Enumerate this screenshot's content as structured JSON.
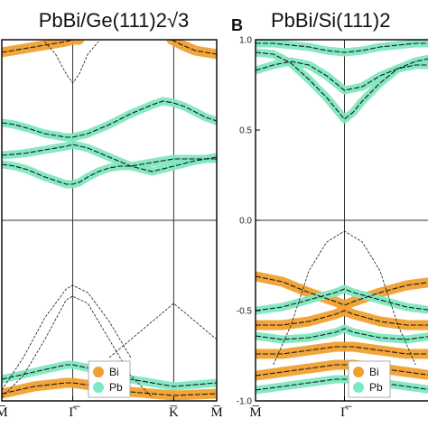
{
  "chart_data": [
    {
      "type": "line",
      "panel_label": "",
      "title": "PbBi/Ge(111)2√3",
      "ylim": [
        -1.0,
        1.0
      ],
      "y_ticks": [],
      "k_points": [
        "M̅",
        "Γ̅",
        "K̅",
        "M̅"
      ],
      "k_positions": [
        0,
        0.33,
        0.8,
        1.0
      ],
      "legend": [
        {
          "name": "Bi",
          "color": "#f0a030"
        },
        {
          "name": "Pb",
          "color": "#7fe8c0"
        }
      ],
      "series": [
        {
          "x": [
            0,
            0.06,
            0.12,
            0.16,
            0.2,
            0.25,
            0.3,
            0.33,
            0.36,
            0.4,
            0.45,
            0.5,
            0.55,
            0.6,
            0.65,
            0.7,
            0.75,
            0.8,
            0.85,
            0.9,
            0.95,
            1.0
          ],
          "y": [
            0.31,
            0.3,
            0.28,
            0.26,
            0.24,
            0.22,
            0.2,
            0.2,
            0.21,
            0.24,
            0.27,
            0.29,
            0.3,
            0.3,
            0.31,
            0.32,
            0.33,
            0.34,
            0.34,
            0.34,
            0.34,
            0.34
          ],
          "proj": "Pb"
        },
        {
          "x": [
            0,
            0.1,
            0.2,
            0.3,
            0.33,
            0.4,
            0.5,
            0.6,
            0.7,
            0.8,
            0.9,
            1.0
          ],
          "y": [
            0.36,
            0.37,
            0.39,
            0.41,
            0.42,
            0.4,
            0.35,
            0.3,
            0.27,
            0.3,
            0.33,
            0.35
          ],
          "proj": "Pb"
        },
        {
          "x": [
            0,
            0.06,
            0.12,
            0.2,
            0.3,
            0.33,
            0.4,
            0.5,
            0.6,
            0.7,
            0.75,
            0.8,
            0.85,
            0.9,
            0.95,
            1.0
          ],
          "y": [
            0.54,
            0.53,
            0.51,
            0.48,
            0.46,
            0.46,
            0.48,
            0.53,
            0.59,
            0.64,
            0.66,
            0.65,
            0.63,
            0.6,
            0.57,
            0.55
          ],
          "proj": "Pb"
        },
        {
          "x": [
            0,
            0.05,
            0.1,
            0.15,
            0.2,
            0.25,
            0.3,
            0.33,
            0.36
          ],
          "y": [
            0.93,
            0.94,
            0.95,
            0.96,
            0.97,
            0.98,
            0.99,
            1.0,
            1.0
          ],
          "proj": "Bi"
        },
        {
          "x": [
            0.79,
            0.84,
            0.9,
            0.95,
            1.0
          ],
          "y": [
            1.0,
            0.97,
            0.94,
            0.93,
            0.92
          ],
          "proj": "Bi"
        },
        {
          "x": [
            0.2,
            0.25,
            0.3,
            0.33,
            0.36,
            0.4,
            0.45
          ],
          "y": [
            0.99,
            0.92,
            0.81,
            0.76,
            0.81,
            0.92,
            0.99
          ],
          "proj": "none"
        },
        {
          "x": [
            0.5,
            0.6,
            0.7,
            0.8,
            0.9,
            1.0
          ],
          "y": [
            -0.76,
            -0.66,
            -0.56,
            -0.46,
            -0.56,
            -0.66
          ],
          "proj": "none"
        },
        {
          "x": [
            0,
            0.1,
            0.2,
            0.3,
            0.33,
            0.4,
            0.5,
            0.6
          ],
          "y": [
            -0.94,
            -0.76,
            -0.54,
            -0.38,
            -0.36,
            -0.4,
            -0.56,
            -0.76
          ],
          "proj": "none"
        },
        {
          "x": [
            0,
            0.1,
            0.2,
            0.3,
            0.33,
            0.4,
            0.5,
            0.6,
            0.7
          ],
          "y": [
            -0.98,
            -0.86,
            -0.66,
            -0.44,
            -0.42,
            -0.46,
            -0.66,
            -0.86,
            -0.98
          ],
          "proj": "none"
        },
        {
          "x": [
            0,
            0.15,
            0.3,
            0.33,
            0.45,
            0.6,
            0.8,
            1.0
          ],
          "y": [
            -0.88,
            -0.84,
            -0.8,
            -0.8,
            -0.83,
            -0.88,
            -0.92,
            -0.9
          ],
          "proj": "Pb"
        },
        {
          "x": [
            0,
            0.15,
            0.3,
            0.33,
            0.45,
            0.6,
            0.8,
            1.0
          ],
          "y": [
            -0.96,
            -0.92,
            -0.9,
            -0.9,
            -0.92,
            -0.95,
            -0.97,
            -0.96
          ],
          "proj": "Bi"
        }
      ]
    },
    {
      "type": "line",
      "panel_label": "B",
      "title": "PbBi/Si(111)2",
      "ylim": [
        -1.0,
        1.0
      ],
      "y_ticks": [
        "1.0",
        "0.5",
        "0.0",
        "-0.5",
        "-1.0"
      ],
      "y_tick_values": [
        1.0,
        0.5,
        0.0,
        -0.5,
        -1.0
      ],
      "k_points": [
        "M̅",
        "Γ̅"
      ],
      "k_positions": [
        0,
        0.5
      ],
      "legend": [
        {
          "name": "Bi",
          "color": "#f0a030"
        },
        {
          "name": "Pb",
          "color": "#7fe8c0"
        }
      ],
      "series": [
        {
          "x": [
            0,
            0.1,
            0.2,
            0.3,
            0.4,
            0.5,
            0.6,
            0.7,
            0.8,
            0.9,
            1.0
          ],
          "y": [
            0.83,
            0.86,
            0.88,
            0.86,
            0.8,
            0.72,
            0.74,
            0.8,
            0.84,
            0.86,
            0.86
          ],
          "proj": "Pb"
        },
        {
          "x": [
            0,
            0.1,
            0.2,
            0.3,
            0.4,
            0.45,
            0.5,
            0.55,
            0.6,
            0.7,
            0.8,
            0.9,
            1.0
          ],
          "y": [
            0.93,
            0.92,
            0.87,
            0.78,
            0.68,
            0.62,
            0.56,
            0.6,
            0.66,
            0.76,
            0.84,
            0.88,
            0.9
          ],
          "proj": "Pb"
        },
        {
          "x": [
            0,
            0.1,
            0.2,
            0.3,
            0.4,
            0.5,
            0.6,
            0.7,
            0.8,
            0.9,
            1.0
          ],
          "y": [
            0.98,
            0.98,
            0.97,
            0.96,
            0.94,
            0.93,
            0.94,
            0.96,
            0.97,
            0.98,
            0.98
          ],
          "proj": "Pb"
        },
        {
          "x": [
            0.1,
            0.2,
            0.3,
            0.4,
            0.5,
            0.6,
            0.7,
            0.8,
            0.9
          ],
          "y": [
            -0.8,
            -0.58,
            -0.28,
            -0.12,
            -0.06,
            -0.12,
            -0.28,
            -0.58,
            -0.8
          ],
          "proj": "none"
        },
        {
          "x": [
            0,
            0.15,
            0.3,
            0.45,
            0.5,
            0.55,
            0.7,
            0.85,
            1.0
          ],
          "y": [
            -0.31,
            -0.34,
            -0.4,
            -0.45,
            -0.47,
            -0.45,
            -0.4,
            -0.36,
            -0.34
          ],
          "proj": "Bi"
        },
        {
          "x": [
            0,
            0.15,
            0.3,
            0.45,
            0.5,
            0.55,
            0.7,
            0.85,
            1.0
          ],
          "y": [
            -0.5,
            -0.48,
            -0.44,
            -0.4,
            -0.38,
            -0.4,
            -0.44,
            -0.48,
            -0.5
          ],
          "proj": "Pb"
        },
        {
          "x": [
            0,
            0.15,
            0.3,
            0.45,
            0.5,
            0.55,
            0.7,
            0.85,
            1.0
          ],
          "y": [
            -0.58,
            -0.58,
            -0.56,
            -0.52,
            -0.5,
            -0.52,
            -0.56,
            -0.58,
            -0.58
          ],
          "proj": "Bi"
        },
        {
          "x": [
            0,
            0.15,
            0.3,
            0.45,
            0.5,
            0.55,
            0.7,
            0.85,
            1.0
          ],
          "y": [
            -0.64,
            -0.66,
            -0.65,
            -0.62,
            -0.6,
            -0.62,
            -0.65,
            -0.66,
            -0.64
          ],
          "proj": "Pb"
        },
        {
          "x": [
            0,
            0.15,
            0.3,
            0.45,
            0.5,
            0.55,
            0.7,
            0.85,
            1.0
          ],
          "y": [
            -0.74,
            -0.74,
            -0.72,
            -0.7,
            -0.7,
            -0.7,
            -0.72,
            -0.74,
            -0.74
          ],
          "proj": "Bi"
        },
        {
          "x": [
            0,
            0.15,
            0.3,
            0.45,
            0.5,
            0.55,
            0.7,
            0.85,
            1.0
          ],
          "y": [
            -0.86,
            -0.84,
            -0.82,
            -0.8,
            -0.8,
            -0.8,
            -0.82,
            -0.84,
            -0.86
          ],
          "proj": "Bi"
        },
        {
          "x": [
            0,
            0.15,
            0.3,
            0.45,
            0.5,
            0.55,
            0.7,
            0.85,
            1.0
          ],
          "y": [
            -0.94,
            -0.92,
            -0.9,
            -0.88,
            -0.88,
            -0.88,
            -0.9,
            -0.92,
            -0.94
          ],
          "proj": "Pb"
        }
      ]
    }
  ],
  "colors": {
    "bi": "#f0a030",
    "pb": "#7fe8c0",
    "band": "#1a1a1a",
    "frame": "#000000"
  }
}
